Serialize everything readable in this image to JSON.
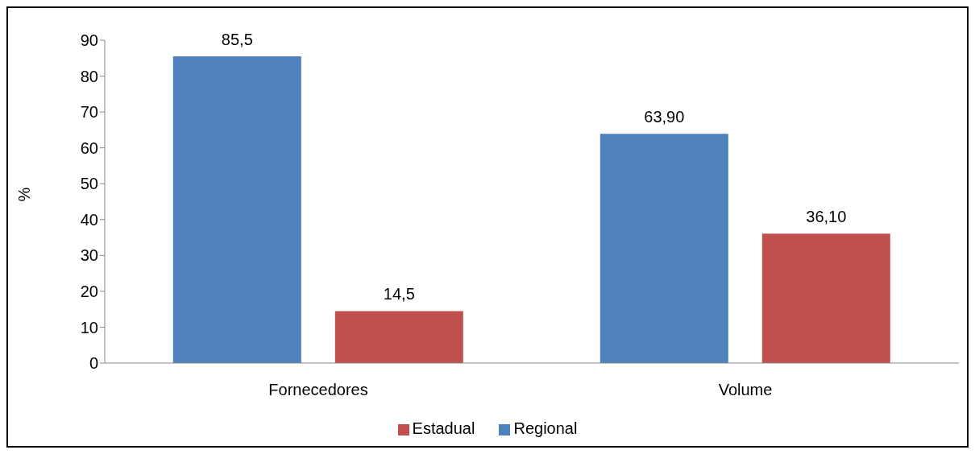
{
  "chart_data": {
    "type": "bar",
    "ylabel": "%",
    "categories": [
      "Fornecedores",
      "Volume"
    ],
    "series": [
      {
        "name": "Regional",
        "color": "#4f81bd",
        "values": [
          85.5,
          63.9
        ],
        "value_labels": [
          "85,5",
          "63,90"
        ]
      },
      {
        "name": "Estadual",
        "color": "#c0504d",
        "values": [
          14.5,
          36.1
        ],
        "value_labels": [
          "14,5",
          "36,10"
        ]
      }
    ],
    "ylim": [
      0,
      90
    ],
    "yticks": [
      0,
      10,
      20,
      30,
      40,
      50,
      60,
      70,
      80,
      90
    ],
    "grid": false,
    "legend": "bottom"
  }
}
